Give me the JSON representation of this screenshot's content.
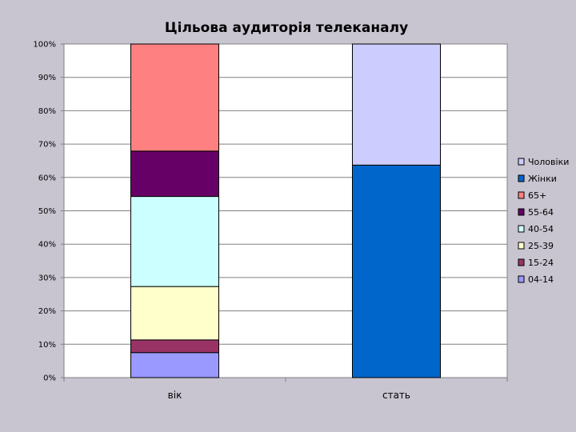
{
  "chart_data": {
    "type": "bar",
    "stacked": true,
    "title": "Цільова аудиторія телеканалу",
    "categories": [
      "вік",
      "стать"
    ],
    "y_ticks": [
      "0%",
      "10%",
      "20%",
      "30%",
      "40%",
      "50%",
      "60%",
      "70%",
      "80%",
      "90%",
      "100%"
    ],
    "ylim": [
      0,
      100
    ],
    "grid": true,
    "legend_position": "right",
    "series": [
      {
        "name": "04-14",
        "color": "#9999ff",
        "values": [
          7.5,
          null
        ]
      },
      {
        "name": "15-24",
        "color": "#993366",
        "values": [
          3.8,
          null
        ]
      },
      {
        "name": "25-39",
        "color": "#ffffcc",
        "values": [
          16.0,
          null
        ]
      },
      {
        "name": "40-54",
        "color": "#ccffff",
        "values": [
          27.0,
          null
        ]
      },
      {
        "name": "55-64",
        "color": "#660066",
        "values": [
          13.6,
          null
        ]
      },
      {
        "name": "65+",
        "color": "#ff8080",
        "values": [
          32.1,
          null
        ]
      },
      {
        "name": "Жінки",
        "color": "#0066cc",
        "values": [
          null,
          63.7
        ]
      },
      {
        "name": "Чоловіки",
        "color": "#ccccff",
        "values": [
          null,
          36.3
        ]
      }
    ],
    "legend_order": [
      "Чоловіки",
      "Жінки",
      "65+",
      "55-64",
      "40-54",
      "25-39",
      "15-24",
      "04-14"
    ]
  }
}
